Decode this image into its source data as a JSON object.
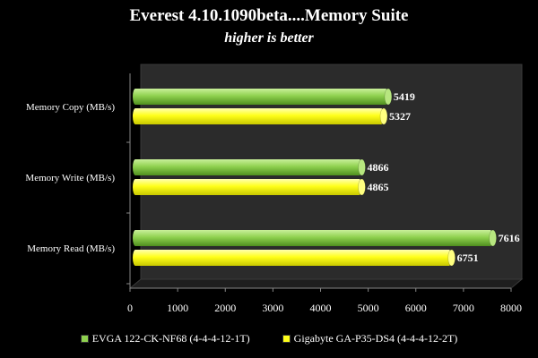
{
  "chart_data": {
    "type": "bar",
    "orientation": "horizontal",
    "title": "Everest 4.10.1090beta....Memory Suite",
    "subtitle": "higher is better",
    "categories": [
      "Memory Copy (MB/s)",
      "Memory Write  (MB/s)",
      "Memory Read (MB/s)"
    ],
    "series": [
      {
        "name": "EVGA 122-CK-NF68 (4-4-4-12-1T)",
        "values": [
          5419,
          4866,
          7616
        ],
        "color": "#8fd14f"
      },
      {
        "name": "Gigabyte GA-P35-DS4  (4-4-4-12-2T)",
        "values": [
          5327,
          4865,
          6751
        ],
        "color": "#ffff1a"
      }
    ],
    "x_ticks": [
      "0",
      "1000",
      "2000",
      "3000",
      "4000",
      "5000",
      "6000",
      "7000",
      "8000"
    ],
    "xlim": [
      0,
      8000
    ],
    "grid": false,
    "legend_position": "bottom",
    "background": "#000000",
    "wall_color": "#2b2b2b"
  }
}
